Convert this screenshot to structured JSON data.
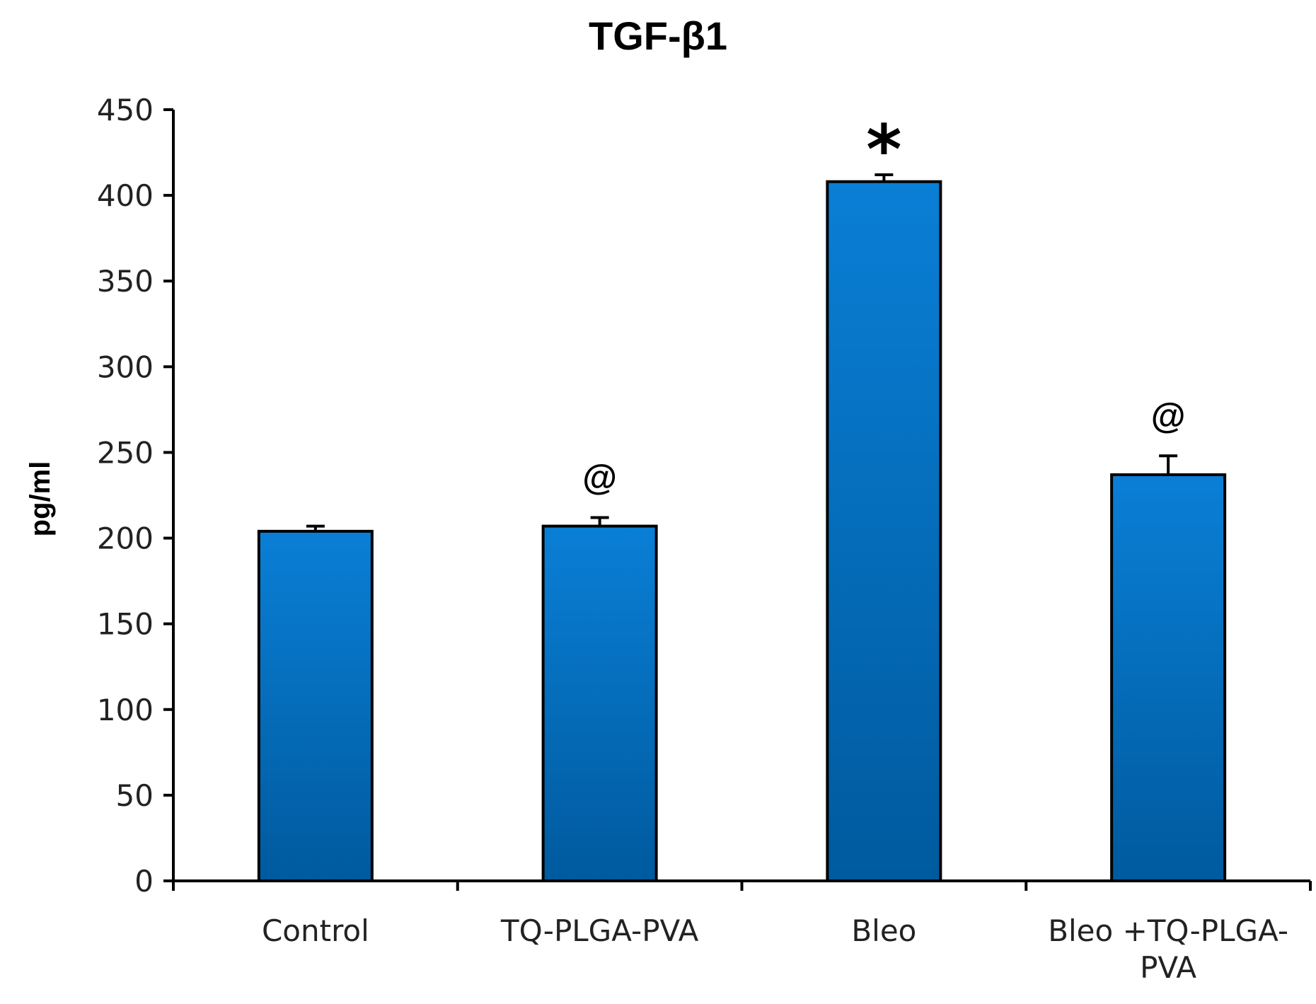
{
  "chart_data": {
    "type": "bar",
    "title": "TGF-β1",
    "xlabel": "",
    "ylabel": "pg/ml",
    "ylim": [
      0,
      450
    ],
    "yticks": [
      0,
      50,
      100,
      150,
      200,
      250,
      300,
      350,
      400,
      450
    ],
    "categories": [
      [
        "Control"
      ],
      [
        "TQ-PLGA-PVA"
      ],
      [
        "Bleo"
      ],
      [
        "Bleo +TQ-PLGA-",
        "PVA"
      ]
    ],
    "values": [
      204,
      207,
      408,
      237
    ],
    "errors": [
      3,
      5,
      4,
      11
    ],
    "annotations": [
      "",
      "@",
      "*",
      "@"
    ],
    "bar_color_top": "#0a7fd6",
    "bar_color_bottom": "#005a9e",
    "grid": false
  }
}
